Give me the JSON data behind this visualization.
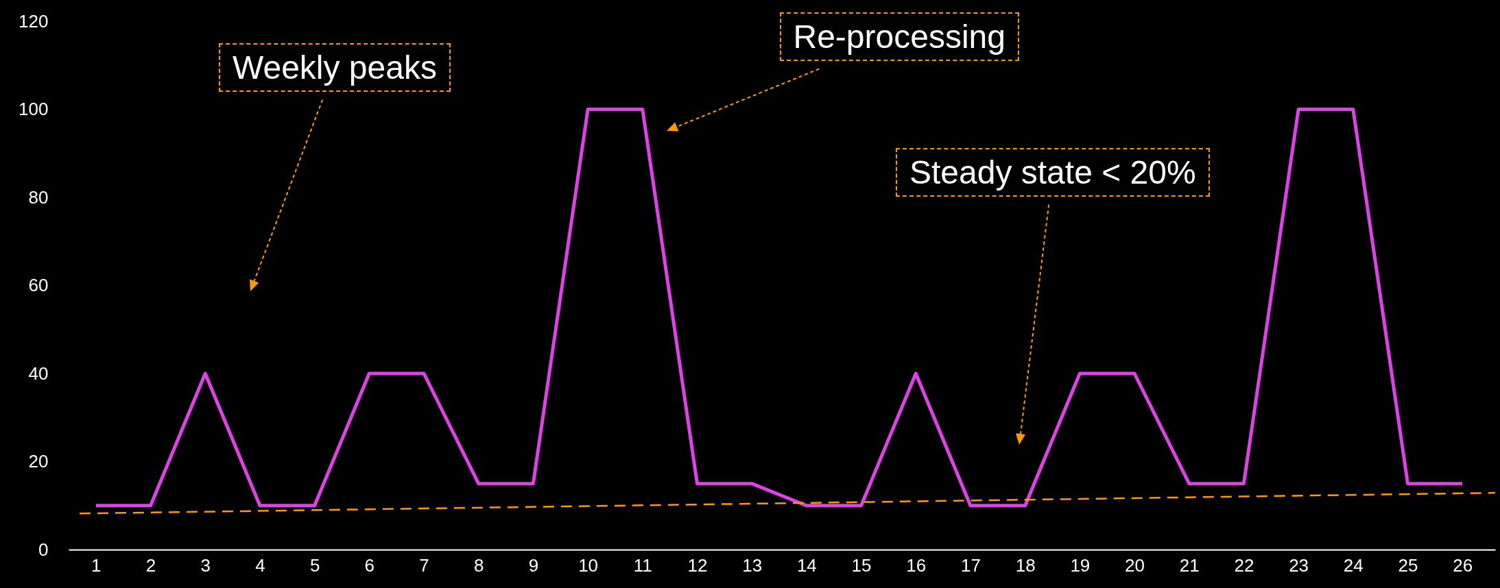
{
  "chart_data": {
    "type": "line",
    "x": [
      1,
      2,
      3,
      4,
      5,
      6,
      7,
      8,
      9,
      10,
      11,
      12,
      13,
      14,
      15,
      16,
      17,
      18,
      19,
      20,
      21,
      22,
      23,
      24,
      25,
      26
    ],
    "series": [
      {
        "color": "#e040e8",
        "values": [
          10,
          10,
          40,
          10,
          10,
          40,
          40,
          15,
          15,
          100,
          100,
          15,
          15,
          10,
          10,
          40,
          10,
          10,
          40,
          40,
          15,
          15,
          100,
          100,
          15,
          15
        ]
      },
      {
        "type": "line",
        "color": "#ff9900",
        "line_style": "dashed",
        "x": [
          0.7,
          26.6
        ],
        "values": [
          8.2,
          12.9
        ]
      }
    ],
    "xlim": [
      0.5,
      26.6
    ],
    "xticks": [
      1,
      2,
      3,
      4,
      5,
      6,
      7,
      8,
      9,
      10,
      11,
      12,
      13,
      14,
      15,
      16,
      17,
      18,
      19,
      20,
      21,
      22,
      23,
      24,
      25,
      26
    ],
    "ylim": [
      0,
      120
    ],
    "yticks": [
      0,
      20,
      40,
      60,
      80,
      100,
      120
    ],
    "grid": false,
    "annotations": [
      "Weekly peaks",
      "Re-processing",
      "Steady state < 20%"
    ]
  }
}
